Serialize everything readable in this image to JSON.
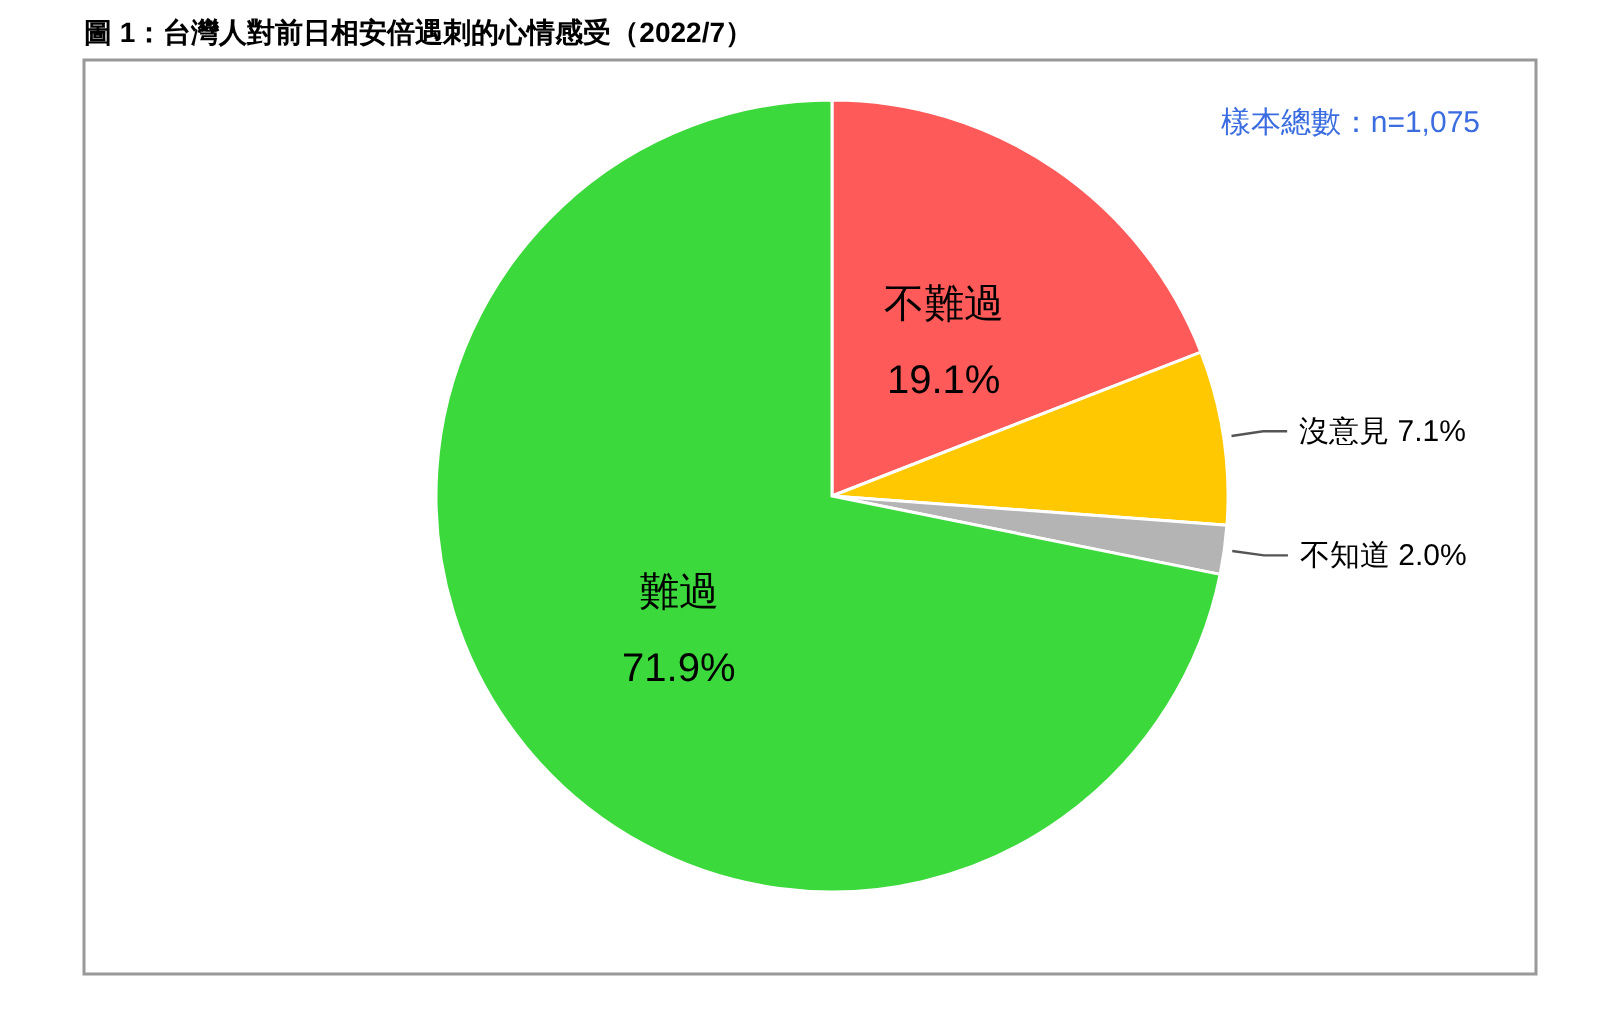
{
  "chart_data": {
    "type": "pie",
    "title": "圖 1：台灣人對前日相安倍遇刺的心情感受（2022/7）",
    "annotations": [
      "樣本總數：n=1,075"
    ],
    "categories": [
      "不難過",
      "沒意見",
      "不知道",
      "難過"
    ],
    "values": [
      19.1,
      7.1,
      2.0,
      71.9
    ],
    "value_labels": [
      "19.1%",
      "7.1%",
      "2.0%",
      "71.9%"
    ],
    "colors": [
      "#fe5a5a",
      "#ffc801",
      "#b4b4b4",
      "#3cd93c"
    ]
  }
}
